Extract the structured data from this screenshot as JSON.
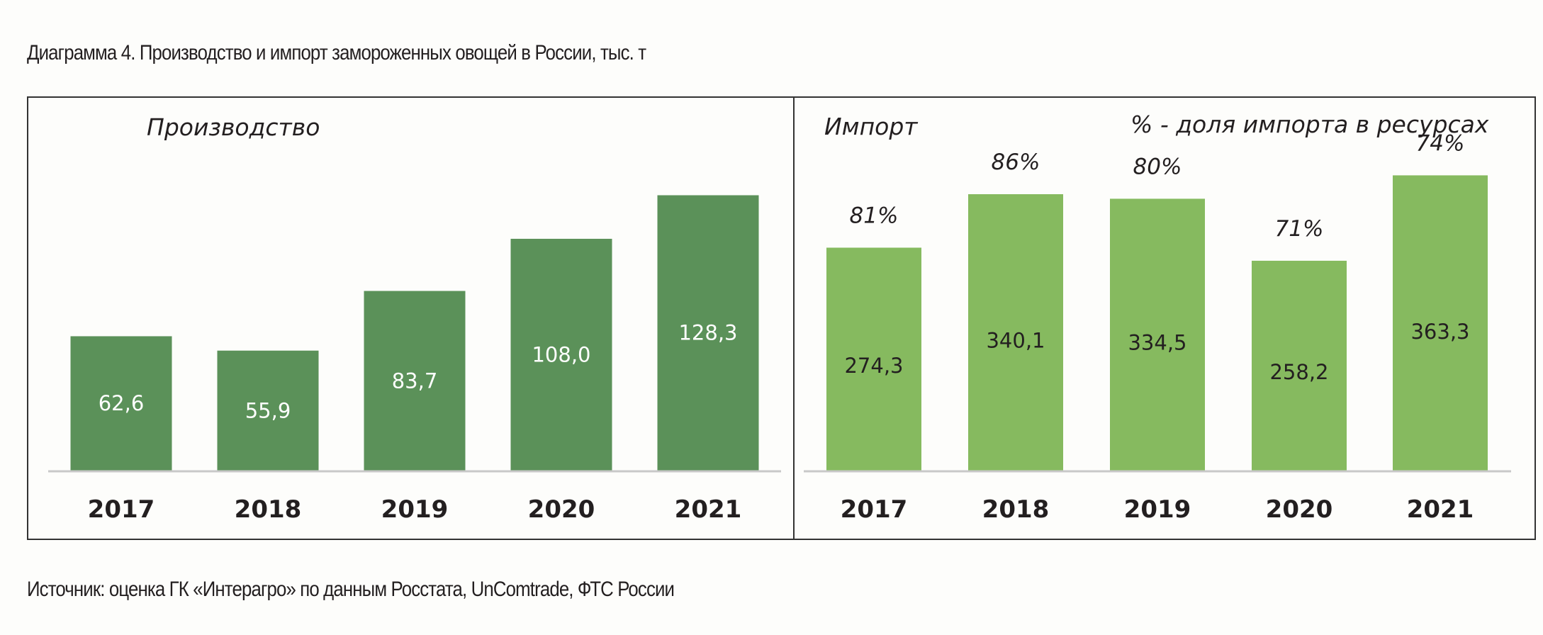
{
  "caption": "Диаграмма 4. Производство и импорт замороженных овощей в России, тыс. т",
  "source": "Источник: оценка ГК «Интерагро» по данным Росстата, UnComtrade, ФТС России",
  "colors": {
    "production_bar": "#5b9159",
    "import_bar": "#86ba5f",
    "frame": "#333333",
    "baseline": "#c8c8c8"
  },
  "chart_data": [
    {
      "type": "bar",
      "title": "Производство",
      "categories": [
        "2017",
        "2018",
        "2019",
        "2020",
        "2021"
      ],
      "values": [
        62.6,
        55.9,
        83.7,
        108.0,
        128.3
      ],
      "value_labels": [
        "62,6",
        "55,9",
        "83,7",
        "108,0",
        "128,3"
      ],
      "ylim": [
        0,
        142
      ]
    },
    {
      "type": "bar",
      "title": "Импорт",
      "note": "%  - доля импорта в ресурсах",
      "categories": [
        "2017",
        "2018",
        "2019",
        "2020",
        "2021"
      ],
      "values": [
        274.3,
        340.1,
        334.5,
        258.2,
        363.3
      ],
      "value_labels": [
        "274,3",
        "340,1",
        "334,5",
        "258,2",
        "363,3"
      ],
      "shares": [
        "81%",
        "86%",
        "80%",
        "71%",
        "74%"
      ],
      "ylim": [
        0,
        375
      ]
    }
  ]
}
